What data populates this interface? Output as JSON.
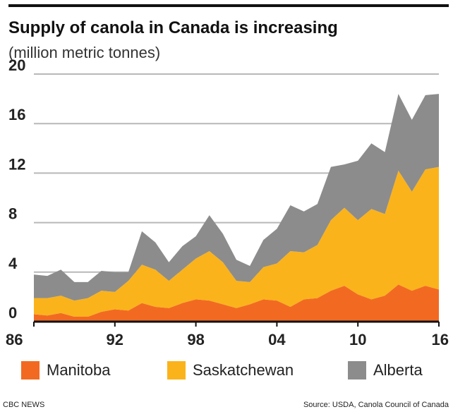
{
  "header": {
    "title": "Supply of canola in Canada is increasing",
    "subtitle": "(million metric tonnes)"
  },
  "footer": {
    "credit": "CBC NEWS",
    "source": "Source: USDA, Canola Council of Canada"
  },
  "colors": {
    "Manitoba": "#f26a21",
    "Saskatchewan": "#fbb31b",
    "Alberta": "#8c8c8c",
    "grid": "#b8b8b8",
    "axis": "#111111"
  },
  "chart_data": {
    "type": "area",
    "stacked": true,
    "title": "Supply of canola in Canada is increasing",
    "subtitle": "(million metric tonnes)",
    "x": [
      1986,
      1987,
      1988,
      1989,
      1990,
      1991,
      1992,
      1993,
      1994,
      1995,
      1996,
      1997,
      1998,
      1999,
      2000,
      2001,
      2002,
      2003,
      2004,
      2005,
      2006,
      2007,
      2008,
      2009,
      2010,
      2011,
      2012,
      2013,
      2014,
      2015,
      2016
    ],
    "xlim": [
      1986,
      2016
    ],
    "x_tick_values": [
      1986,
      1992,
      1998,
      2004,
      2010,
      2016
    ],
    "x_tick_labels": [
      "86",
      "92",
      "98",
      "04",
      "10",
      "16"
    ],
    "ylim": [
      0,
      20
    ],
    "y_ticks": [
      0,
      4,
      8,
      12,
      16,
      20
    ],
    "grid": true,
    "legend_position": "bottom",
    "series": [
      {
        "name": "Manitoba",
        "values": [
          0.6,
          0.5,
          0.7,
          0.4,
          0.4,
          0.8,
          1.0,
          0.9,
          1.5,
          1.2,
          1.1,
          1.5,
          1.8,
          1.7,
          1.4,
          1.1,
          1.4,
          1.8,
          1.7,
          1.2,
          1.8,
          1.9,
          2.5,
          2.9,
          2.2,
          1.8,
          2.1,
          3.0,
          2.5,
          2.9,
          2.6
        ]
      },
      {
        "name": "Saskatchewan",
        "values": [
          1.3,
          1.4,
          1.4,
          1.3,
          1.5,
          1.7,
          1.4,
          2.4,
          3.1,
          3.0,
          2.2,
          2.7,
          3.3,
          4.0,
          3.4,
          2.2,
          1.8,
          2.6,
          3.0,
          4.5,
          3.8,
          4.3,
          5.7,
          6.3,
          6.0,
          7.3,
          6.6,
          9.2,
          8.0,
          9.4,
          9.9
        ]
      },
      {
        "name": "Alberta",
        "values": [
          1.9,
          1.8,
          2.1,
          1.5,
          1.3,
          1.6,
          1.6,
          0.7,
          2.7,
          2.2,
          1.5,
          1.9,
          1.8,
          2.9,
          2.3,
          1.7,
          1.3,
          2.2,
          2.8,
          3.7,
          3.3,
          3.3,
          4.3,
          3.5,
          4.8,
          5.3,
          5.0,
          6.2,
          5.8,
          6.0,
          5.9
        ]
      }
    ]
  }
}
